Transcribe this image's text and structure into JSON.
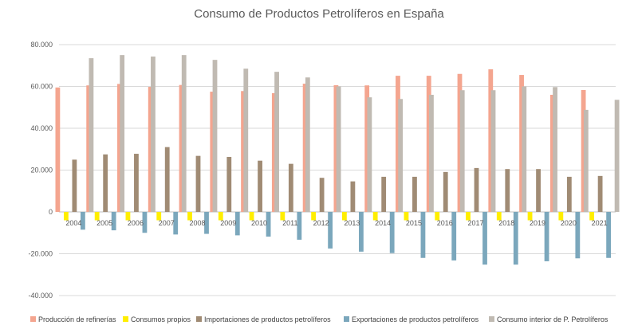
{
  "chart_data": {
    "type": "bar",
    "title": "Consumo de Productos Petrolíferos en España",
    "xlabel": "",
    "ylabel": "",
    "categories": [
      "2004",
      "2005",
      "2006",
      "2007",
      "2008",
      "2009",
      "2010",
      "2011",
      "2012",
      "2013",
      "2014",
      "2015",
      "2016",
      "2017",
      "2018",
      "2019",
      "2020",
      "2021"
    ],
    "ylim": [
      -40000,
      80000
    ],
    "yticks": [
      80000,
      60000,
      40000,
      20000,
      0,
      -20000,
      -40000
    ],
    "ytick_labels": [
      "80.000",
      "60.000",
      "40.000",
      "20.000",
      "0",
      "-20.000",
      "-40.000"
    ],
    "grid": true,
    "legend_position": "bottom",
    "series": [
      {
        "name": "Producción de refinerías",
        "color": "#f4a58f",
        "values": [
          59500,
          60500,
          61200,
          59800,
          60700,
          57500,
          57800,
          56800,
          61300,
          60600,
          60500,
          65100,
          65100,
          66000,
          68200,
          65500,
          56000,
          58300
        ]
      },
      {
        "name": "Consumos propios",
        "color": "#ffee00",
        "values": [
          -4000,
          -4000,
          -4000,
          -4000,
          -4000,
          -4000,
          -4000,
          -4000,
          -4000,
          -4000,
          -4000,
          -4000,
          -4000,
          -4000,
          -4000,
          -4000,
          -4000,
          -4000
        ]
      },
      {
        "name": "Importaciones de productos petrolíferos",
        "color": "#a08b74",
        "values": [
          25000,
          27500,
          27800,
          31000,
          26800,
          26300,
          24500,
          23000,
          16300,
          14600,
          16800,
          16800,
          19100,
          21000,
          20500,
          20500,
          16800,
          17200
        ]
      },
      {
        "name": "Exportaciones de productos petrolíferos",
        "color": "#7ba7bc",
        "values": [
          -8500,
          -8800,
          -10000,
          -10800,
          -10500,
          -11200,
          -11800,
          -13300,
          -17500,
          -19000,
          -19700,
          -22000,
          -23200,
          -25200,
          -25200,
          -23600,
          -22200,
          -22000
        ]
      },
      {
        "name": "Consumo interior de P. Petrolíferos",
        "color": "#c0bab2",
        "values": [
          73500,
          75000,
          74300,
          75000,
          72700,
          68500,
          67000,
          64300,
          60000,
          54800,
          54000,
          56000,
          58200,
          58200,
          60000,
          59700,
          48800,
          53600
        ]
      }
    ]
  }
}
